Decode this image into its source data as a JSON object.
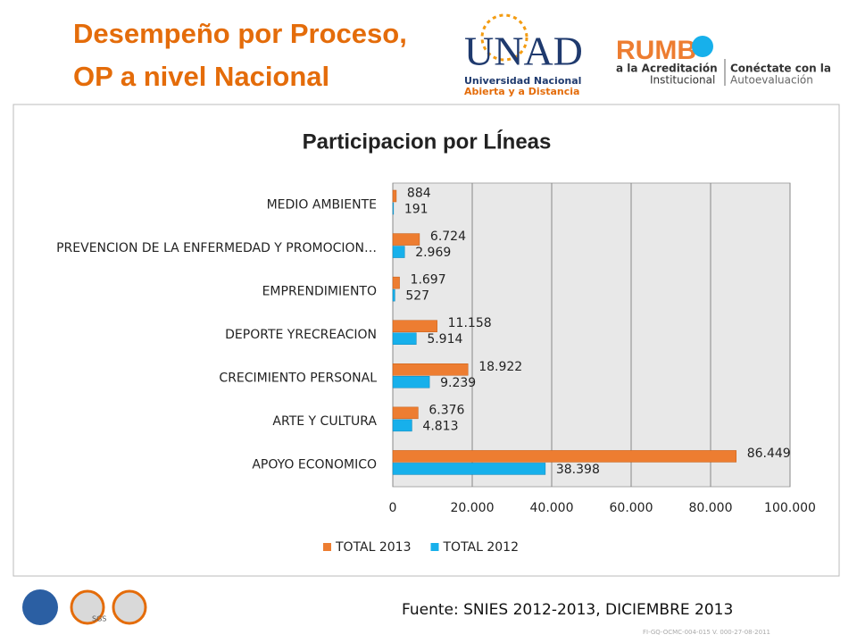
{
  "slide": {
    "title_lines": [
      "Desempeño por Proceso,",
      "OP a nivel Nacional"
    ],
    "logo_unad": "UNAD",
    "logo_unad_lines": [
      "Universidad Nacional",
      "Abierta y a Distancia"
    ],
    "logo_rumbo": "RUMB",
    "logo_rumbo_lines": [
      "a la Acreditación",
      "Institucional"
    ],
    "logo_conectate_lines": [
      "Conéctate con la",
      "Autoevaluación"
    ],
    "source": "Fuente: SNIES 2012-2013, DICIEMBRE 2013",
    "footer_code": "FI-GQ-OCMC-004-015 V. 000-27-08-2011",
    "cert_label": "SGS"
  },
  "chart_data": {
    "type": "hbar",
    "title": "Participacion por LÍneas",
    "categories": [
      "MEDIO AMBIENTE",
      "PREVENCION DE LA ENFERMEDAD Y PROMOCION…",
      "EMPRENDIMIENTO",
      "DEPORTE YRECREACION",
      "CRECIMIENTO PERSONAL",
      "ARTE Y CULTURA",
      "APOYO ECONOMICO"
    ],
    "series": [
      {
        "name": "TOTAL 2013",
        "color": "#ed7d31",
        "values": [
          884,
          6724,
          1697,
          11158,
          18922,
          6376,
          86449
        ],
        "value_labels": [
          "884",
          "6.724",
          "1.697",
          "11.158",
          "18.922",
          "6.376",
          "86.449"
        ]
      },
      {
        "name": "TOTAL 2012",
        "color": "#17b0eb",
        "values": [
          191,
          2969,
          527,
          5914,
          9239,
          4813,
          38398
        ],
        "value_labels": [
          "191",
          "2.969",
          "527",
          "5.914",
          "9.239",
          "4.813",
          "38.398"
        ]
      }
    ],
    "xlim": [
      0,
      100000
    ],
    "xticks": [
      0,
      {
        "value": 20000,
        "label": "20.000"
      },
      {
        "value": 40000,
        "label": "40.000"
      },
      {
        "value": 60000,
        "label": "60.000"
      },
      {
        "value": 80000,
        "label": "80.000"
      },
      {
        "value": 100000,
        "label": "100.000"
      }
    ],
    "grid": true,
    "legend": "bottom"
  }
}
